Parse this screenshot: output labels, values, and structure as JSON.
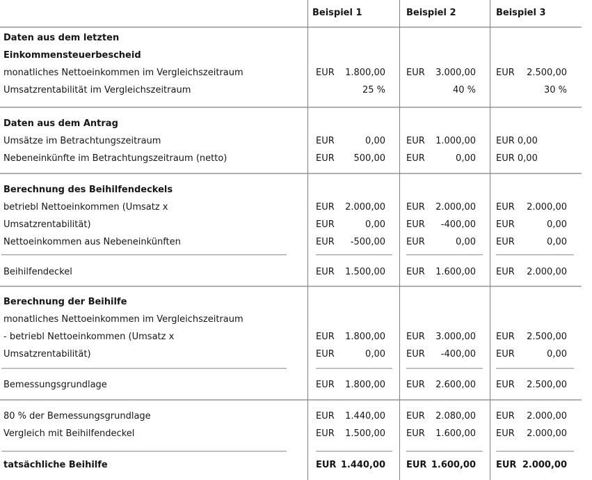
{
  "colors": {
    "background": "#ffffff",
    "text": "#161616",
    "grid_vertical": "#7f7f7f",
    "grid_horizontal": "#b0b0b0",
    "sum_rule": "#a2a2a2"
  },
  "header": {
    "b1": "Beispiel 1",
    "b2": "Beispiel 2",
    "b3": "Beispiel 3"
  },
  "s1": {
    "h1": "Daten aus dem letzten",
    "h2": "Einkommensteuerbescheid",
    "r1": {
      "label": "monatliches Nettoeinkommen im Vergleichszeitraum",
      "c1": "EUR",
      "v1": "1.800,00",
      "c2": "EUR",
      "v2": "3.000,00",
      "c3": "EUR",
      "v3": "2.500,00"
    },
    "r2": {
      "label": "Umsatzrentabilität im Vergleichszeitraum",
      "v1": "25 %",
      "v2": "40 %",
      "v3": "30 %"
    }
  },
  "s2": {
    "h": "Daten aus dem Antrag",
    "r1": {
      "label": "Umsätze im Betrachtungszeitraum",
      "c1": "EUR",
      "v1": "0,00",
      "c2": "EUR",
      "v2": "1.000,00",
      "v3": "EUR 0,00"
    },
    "r2": {
      "label": "Nebeneinkünfte im Betrachtungszeitraum (netto)",
      "c1": "EUR",
      "v1": "500,00",
      "c2": "EUR",
      "v2": "0,00",
      "v3": "EUR 0,00"
    }
  },
  "s3": {
    "h": "Berechnung des Beihilfendeckels",
    "r1a": {
      "label": "betriebl Nettoeinkommen (Umsatz x",
      "c1": "EUR",
      "v1": "2.000,00",
      "c2": "EUR",
      "v2": "2.000,00",
      "c3": "EUR",
      "v3": "2.000,00"
    },
    "r1b": {
      "label": "Umsatzrentabilität)",
      "c1": "EUR",
      "v1": "0,00",
      "c2": "EUR",
      "v2": "-400,00",
      "c3": "EUR",
      "v3": "0,00"
    },
    "r2": {
      "label": "Nettoeinkommen aus Nebeneinkünften",
      "c1": "EUR",
      "v1": "-500,00",
      "c2": "EUR",
      "v2": "0,00",
      "c3": "EUR",
      "v3": "0,00"
    },
    "total": {
      "label": "Beihilfendeckel",
      "c1": "EUR",
      "v1": "1.500,00",
      "c2": "EUR",
      "v2": "1.600,00",
      "c3": "EUR",
      "v3": "2.000,00"
    }
  },
  "s4": {
    "h": "Berechnung der Beihilfe",
    "r0": {
      "label": "monatliches Nettoeinkommen im Vergleichszeitraum"
    },
    "r1a": {
      "label": "- betriebl Nettoeinkommen (Umsatz x",
      "c1": "EUR",
      "v1": "1.800,00",
      "c2": "EUR",
      "v2": "3.000,00",
      "c3": "EUR",
      "v3": "2.500,00"
    },
    "r1b": {
      "label": "Umsatzrentabilität)",
      "c1": "EUR",
      "v1": "0,00",
      "c2": "EUR",
      "v2": "-400,00",
      "c3": "EUR",
      "v3": "0,00"
    },
    "total": {
      "label": "Bemessungsgrundlage",
      "c1": "EUR",
      "v1": "1.800,00",
      "c2": "EUR",
      "v2": "2.600,00",
      "c3": "EUR",
      "v3": "2.500,00"
    }
  },
  "s5": {
    "r1": {
      "label": "80 % der Bemessungsgrundlage",
      "c1": "EUR",
      "v1": "1.440,00",
      "c2": "EUR",
      "v2": "2.080,00",
      "c3": "EUR",
      "v3": "2.000,00"
    },
    "r2": {
      "label": "Vergleich mit Beihilfendeckel",
      "c1": "EUR",
      "v1": "1.500,00",
      "c2": "EUR",
      "v2": "1.600,00",
      "c3": "EUR",
      "v3": "2.000,00"
    },
    "total": {
      "label": "tatsächliche Beihilfe",
      "c1": "EUR",
      "v1": "1.440,00",
      "c2": "EUR",
      "v2": "1.600,00",
      "c3": "EUR",
      "v3": "2.000,00"
    }
  }
}
